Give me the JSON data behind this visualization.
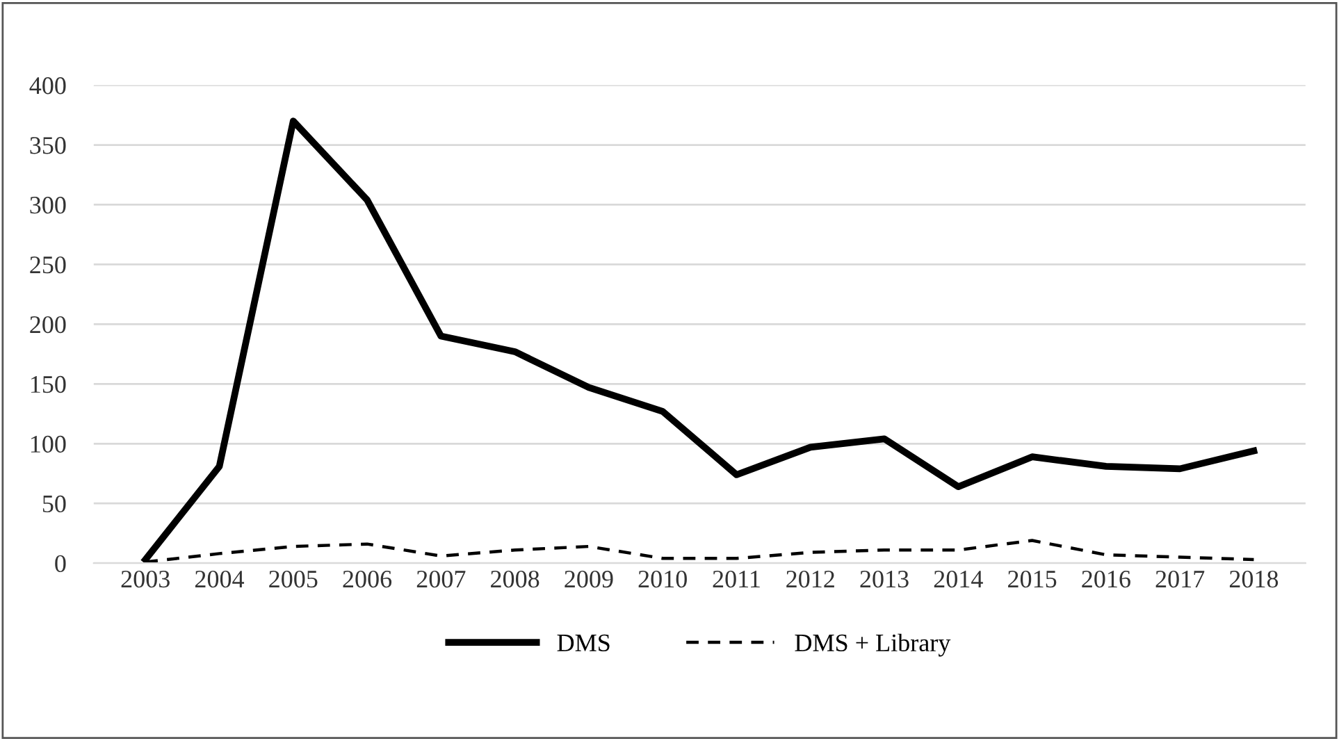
{
  "chart_data": {
    "type": "line",
    "categories": [
      "2003",
      "2004",
      "2005",
      "2006",
      "2007",
      "2008",
      "2009",
      "2010",
      "2011",
      "2012",
      "2013",
      "2014",
      "2015",
      "2016",
      "2017",
      "2018"
    ],
    "series": [
      {
        "name": "DMS",
        "color": "#000000",
        "line_style": "solid",
        "values": [
          3,
          81,
          370,
          304,
          190,
          177,
          147,
          127,
          74,
          97,
          104,
          64,
          89,
          81,
          79,
          94
        ]
      },
      {
        "name": "DMS + Library",
        "color": "#000000",
        "line_style": "dashed",
        "values": [
          1,
          8,
          14,
          16,
          6,
          11,
          14,
          4,
          4,
          9,
          11,
          11,
          19,
          7,
          5,
          3
        ]
      }
    ],
    "ylim": [
      0,
      400
    ],
    "yticks": [
      0,
      50,
      100,
      150,
      200,
      250,
      300,
      350,
      400
    ],
    "grid": "y",
    "legend": "bottom",
    "marker": "none"
  }
}
